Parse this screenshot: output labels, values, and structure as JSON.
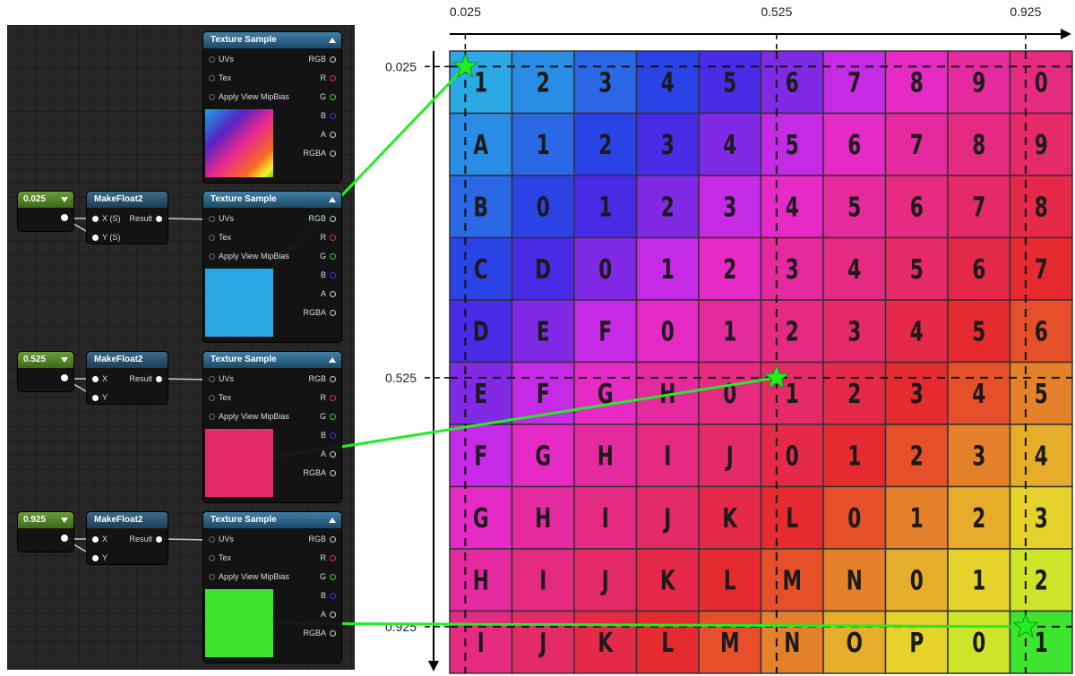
{
  "editor": {
    "preview_node": {
      "title": "Texture Sample",
      "inputs": [
        "UVs",
        "Tex",
        "Apply View MipBias"
      ],
      "outputs": [
        "RGB",
        "R",
        "G",
        "B",
        "A",
        "RGBA"
      ]
    },
    "rows": [
      {
        "constant": 0.025,
        "make_float2": {
          "title": "MakeFloat2",
          "inputs": [
            "X (S)",
            "Y (S)"
          ],
          "output": "Result"
        },
        "texture": {
          "title": "Texture Sample",
          "inputs": [
            "UVs",
            "Tex",
            "Apply View MipBias"
          ],
          "outputs": [
            "RGB",
            "R",
            "G",
            "B",
            "A",
            "RGBA"
          ]
        }
      },
      {
        "constant": 0.525,
        "make_float2": {
          "title": "MakeFloat2",
          "inputs": [
            "X",
            "Y"
          ],
          "output": "Result"
        },
        "texture": {
          "title": "Texture Sample",
          "inputs": [
            "UVs",
            "Tex",
            "Apply View MipBias"
          ],
          "outputs": [
            "RGB",
            "R",
            "G",
            "B",
            "A",
            "RGBA"
          ]
        }
      },
      {
        "constant": 0.925,
        "make_float2": {
          "title": "MakeFloat2",
          "inputs": [
            "X",
            "Y"
          ],
          "output": "Result"
        },
        "texture": {
          "title": "Texture Sample",
          "inputs": [
            "UVs",
            "Tex",
            "Apply View MipBias"
          ],
          "outputs": [
            "RGB",
            "R",
            "G",
            "B",
            "A",
            "RGBA"
          ]
        }
      }
    ]
  },
  "texture_grid": {
    "xticks": [
      0.025,
      0.525,
      0.925
    ],
    "yticks": [
      0.025,
      0.525,
      0.925
    ],
    "cells": [
      [
        "1",
        "2",
        "3",
        "4",
        "5",
        "6",
        "7",
        "8",
        "9",
        "0"
      ],
      [
        "A",
        "1",
        "2",
        "3",
        "4",
        "5",
        "6",
        "7",
        "8",
        "9"
      ],
      [
        "B",
        "0",
        "1",
        "2",
        "3",
        "4",
        "5",
        "6",
        "7",
        "8"
      ],
      [
        "C",
        "D",
        "0",
        "1",
        "2",
        "3",
        "4",
        "5",
        "6",
        "7"
      ],
      [
        "D",
        "E",
        "F",
        "0",
        "1",
        "2",
        "3",
        "4",
        "5",
        "6"
      ],
      [
        "E",
        "F",
        "G",
        "H",
        "0",
        "1",
        "2",
        "3",
        "4",
        "5"
      ],
      [
        "F",
        "G",
        "H",
        "I",
        "J",
        "0",
        "1",
        "2",
        "3",
        "4"
      ],
      [
        "G",
        "H",
        "I",
        "J",
        "K",
        "L",
        "0",
        "1",
        "2",
        "3"
      ],
      [
        "H",
        "I",
        "J",
        "K",
        "L",
        "M",
        "N",
        "0",
        "1",
        "2"
      ],
      [
        "I",
        "J",
        "K",
        "L",
        "M",
        "N",
        "O",
        "P",
        "0",
        "1"
      ]
    ]
  }
}
